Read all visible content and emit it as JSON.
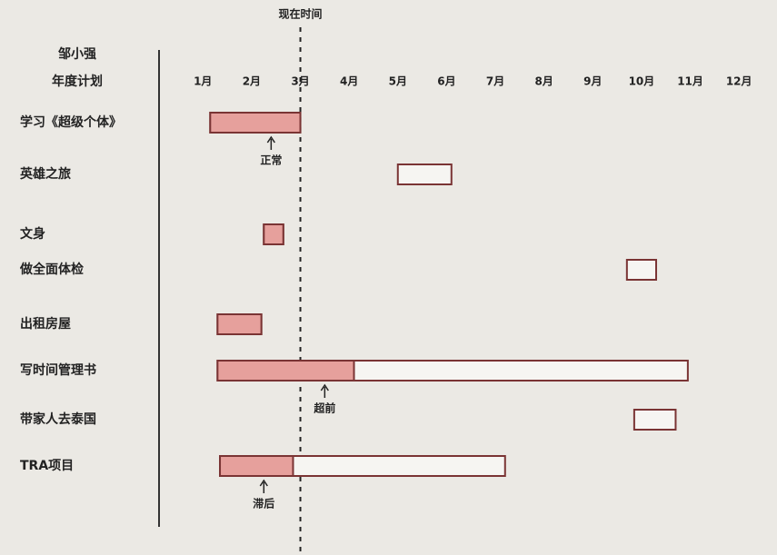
{
  "chart_data": {
    "type": "gantt",
    "title": [
      "邹小强",
      "年度计划"
    ],
    "xlim": [
      0.1,
      12.5
    ],
    "xticks": [
      {
        "value": 1,
        "label": "1月"
      },
      {
        "value": 2,
        "label": "2月"
      },
      {
        "value": 3,
        "label": "3月"
      },
      {
        "value": 4,
        "label": "4月"
      },
      {
        "value": 5,
        "label": "5月"
      },
      {
        "value": 6,
        "label": "6月"
      },
      {
        "value": 7,
        "label": "7月"
      },
      {
        "value": 8,
        "label": "8月"
      },
      {
        "value": 9,
        "label": "9月"
      },
      {
        "value": 10,
        "label": "10月"
      },
      {
        "value": 11,
        "label": "11月"
      },
      {
        "value": 12,
        "label": "12月"
      }
    ],
    "now": 3,
    "now_label": "现在时间",
    "done_color": "#e6a09c",
    "border_color": "#7a3434",
    "tasks": [
      {
        "name": "学习《超级个体》",
        "start": 1.15,
        "end": 3.0,
        "done": 3.0,
        "status": "正常"
      },
      {
        "name": "英雄之旅",
        "start": 5.0,
        "end": 6.1
      },
      {
        "name": "文身",
        "start": 2.25,
        "end": 2.65,
        "done": 2.65
      },
      {
        "name": "做全面体检",
        "start": 9.7,
        "end": 10.3
      },
      {
        "name": "出租房屋",
        "start": 1.3,
        "end": 2.2,
        "done": 2.2
      },
      {
        "name": "写时间管理书",
        "start": 1.3,
        "end": 10.95,
        "done": 4.1,
        "status": "超前"
      },
      {
        "name": "带家人去泰国",
        "start": 9.85,
        "end": 10.7
      },
      {
        "name": "TRA项目",
        "start": 1.35,
        "end": 7.2,
        "done": 2.85,
        "status": "滞后"
      }
    ]
  }
}
